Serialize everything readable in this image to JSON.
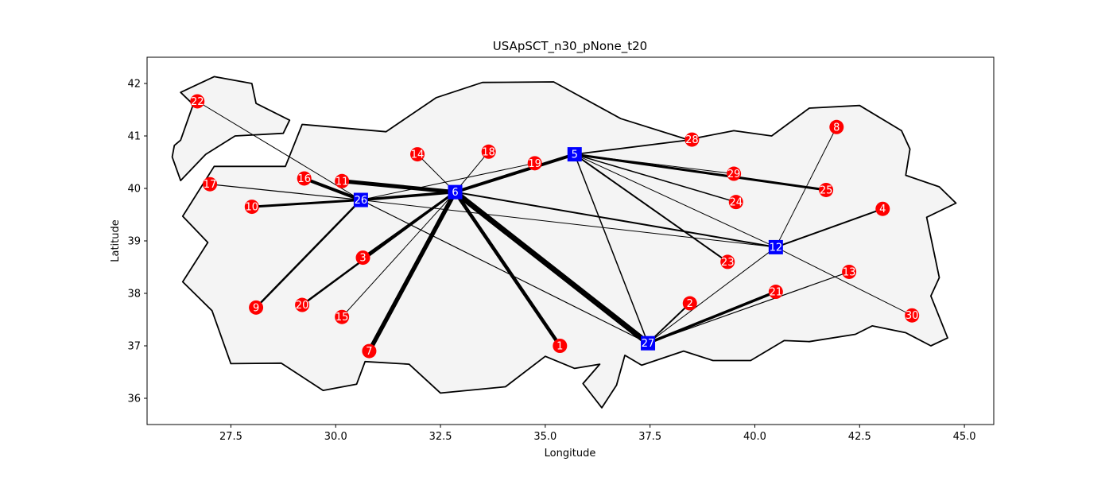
{
  "chart_data": {
    "type": "scatter",
    "title": "USApSCT_n30_pNone_t20",
    "xlabel": "Longitude",
    "ylabel": "Latitude",
    "xlim": [
      25.5,
      45.7
    ],
    "ylim": [
      35.5,
      42.5
    ],
    "xticks": [
      27.5,
      30.0,
      32.5,
      35.0,
      37.5,
      40.0,
      42.5,
      45.0
    ],
    "xtick_labels": [
      "27.5",
      "30.0",
      "32.5",
      "35.0",
      "37.5",
      "40.0",
      "42.5",
      "45.0"
    ],
    "yticks": [
      36,
      37,
      38,
      39,
      40,
      41,
      42
    ],
    "ytick_labels": [
      "36",
      "37",
      "38",
      "39",
      "40",
      "41",
      "42"
    ],
    "grid": false,
    "colors": {
      "hub": "#0000ff",
      "node": "#ff0000",
      "region_fill": "#f4f4f4",
      "edge": "#000000"
    },
    "outline": [
      [
        26.3,
        41.83
      ],
      [
        27.1,
        42.13
      ],
      [
        28.0,
        42.0
      ],
      [
        28.1,
        41.62
      ],
      [
        28.9,
        41.3
      ],
      [
        28.75,
        41.05
      ],
      [
        27.6,
        41.0
      ],
      [
        26.9,
        40.65
      ],
      [
        26.3,
        40.15
      ],
      [
        26.1,
        40.6
      ],
      [
        26.15,
        40.82
      ],
      [
        26.3,
        40.92
      ],
      [
        26.6,
        41.6
      ],
      [
        26.3,
        41.83
      ]
    ],
    "outline2": [
      [
        27.1,
        40.42
      ],
      [
        28.8,
        40.42
      ],
      [
        29.2,
        41.22
      ],
      [
        31.2,
        41.08
      ],
      [
        32.4,
        41.73
      ],
      [
        33.5,
        42.02
      ],
      [
        35.2,
        42.03
      ],
      [
        36.8,
        41.33
      ],
      [
        38.4,
        40.93
      ],
      [
        39.5,
        41.1
      ],
      [
        40.4,
        41.0
      ],
      [
        41.3,
        41.53
      ],
      [
        42.5,
        41.58
      ],
      [
        43.5,
        41.1
      ],
      [
        43.7,
        40.75
      ],
      [
        43.6,
        40.25
      ],
      [
        44.4,
        40.03
      ],
      [
        44.8,
        39.72
      ],
      [
        44.1,
        39.45
      ],
      [
        44.4,
        38.3
      ],
      [
        44.2,
        37.95
      ],
      [
        44.6,
        37.15
      ],
      [
        44.2,
        37.0
      ],
      [
        43.6,
        37.25
      ],
      [
        42.8,
        37.38
      ],
      [
        42.4,
        37.22
      ],
      [
        41.3,
        37.08
      ],
      [
        40.7,
        37.1
      ],
      [
        39.9,
        36.72
      ],
      [
        39.0,
        36.72
      ],
      [
        38.3,
        36.9
      ],
      [
        37.3,
        36.63
      ],
      [
        36.9,
        36.82
      ],
      [
        36.7,
        36.25
      ],
      [
        36.35,
        35.82
      ],
      [
        35.9,
        36.28
      ],
      [
        36.3,
        36.65
      ],
      [
        35.7,
        36.57
      ],
      [
        35.0,
        36.8
      ],
      [
        34.05,
        36.22
      ],
      [
        32.5,
        36.1
      ],
      [
        31.75,
        36.65
      ],
      [
        30.7,
        36.7
      ],
      [
        30.5,
        36.27
      ],
      [
        29.7,
        36.15
      ],
      [
        28.7,
        36.67
      ],
      [
        27.5,
        36.66
      ],
      [
        27.05,
        37.67
      ],
      [
        26.35,
        38.22
      ],
      [
        26.95,
        38.97
      ],
      [
        26.35,
        39.47
      ],
      [
        27.1,
        40.42
      ]
    ],
    "hubs": [
      {
        "id": "5",
        "x": 35.7,
        "y": 40.65
      },
      {
        "id": "6",
        "x": 32.85,
        "y": 39.93
      },
      {
        "id": "12",
        "x": 40.5,
        "y": 38.88
      },
      {
        "id": "26",
        "x": 30.6,
        "y": 39.78
      },
      {
        "id": "27",
        "x": 37.45,
        "y": 37.05
      }
    ],
    "nodes": [
      {
        "id": "1",
        "x": 35.35,
        "y": 37.0
      },
      {
        "id": "2",
        "x": 38.45,
        "y": 37.81
      },
      {
        "id": "3",
        "x": 30.65,
        "y": 38.68
      },
      {
        "id": "4",
        "x": 43.05,
        "y": 39.61
      },
      {
        "id": "7",
        "x": 30.8,
        "y": 36.9
      },
      {
        "id": "8",
        "x": 41.95,
        "y": 41.17
      },
      {
        "id": "9",
        "x": 28.1,
        "y": 37.73
      },
      {
        "id": "10",
        "x": 28.0,
        "y": 39.65
      },
      {
        "id": "11",
        "x": 30.15,
        "y": 40.14
      },
      {
        "id": "13",
        "x": 42.25,
        "y": 38.41
      },
      {
        "id": "14",
        "x": 31.95,
        "y": 40.65
      },
      {
        "id": "15",
        "x": 30.15,
        "y": 37.55
      },
      {
        "id": "16",
        "x": 29.25,
        "y": 40.19
      },
      {
        "id": "17",
        "x": 27.0,
        "y": 40.08
      },
      {
        "id": "18",
        "x": 33.65,
        "y": 40.7
      },
      {
        "id": "19",
        "x": 34.75,
        "y": 40.48
      },
      {
        "id": "20",
        "x": 29.2,
        "y": 37.78
      },
      {
        "id": "21",
        "x": 40.5,
        "y": 38.03
      },
      {
        "id": "22",
        "x": 26.7,
        "y": 41.66
      },
      {
        "id": "23",
        "x": 39.35,
        "y": 38.6
      },
      {
        "id": "24",
        "x": 39.55,
        "y": 39.74
      },
      {
        "id": "25",
        "x": 41.7,
        "y": 39.97
      },
      {
        "id": "28",
        "x": 38.5,
        "y": 40.93
      },
      {
        "id": "29",
        "x": 39.5,
        "y": 40.28
      },
      {
        "id": "30",
        "x": 43.75,
        "y": 37.58
      }
    ],
    "edges": [
      {
        "from": "6",
        "to": "27",
        "width": 7
      },
      {
        "from": "6",
        "to": "7",
        "width": 5.5
      },
      {
        "from": "6",
        "to": "1",
        "width": 4.5
      },
      {
        "from": "6",
        "to": "11",
        "width": 5
      },
      {
        "from": "26",
        "to": "16",
        "width": 4
      },
      {
        "from": "6",
        "to": "5",
        "width": 4
      },
      {
        "from": "6",
        "to": "26",
        "width": 3.5
      },
      {
        "from": "26",
        "to": "10",
        "width": 3
      },
      {
        "from": "26",
        "to": "9",
        "width": 2.5
      },
      {
        "from": "6",
        "to": "3",
        "width": 3
      },
      {
        "from": "6",
        "to": "20",
        "width": 2.5
      },
      {
        "from": "6",
        "to": "15",
        "width": 1
      },
      {
        "from": "6",
        "to": "14",
        "width": 1
      },
      {
        "from": "6",
        "to": "18",
        "width": 1
      },
      {
        "from": "6",
        "to": "12",
        "width": 2
      },
      {
        "from": "26",
        "to": "17",
        "width": 1.2
      },
      {
        "from": "26",
        "to": "22",
        "width": 1
      },
      {
        "from": "26",
        "to": "27",
        "width": 1.2
      },
      {
        "from": "26",
        "to": "19",
        "width": 1
      },
      {
        "from": "26",
        "to": "12",
        "width": 1
      },
      {
        "from": "5",
        "to": "28",
        "width": 1.8
      },
      {
        "from": "5",
        "to": "29",
        "width": 1
      },
      {
        "from": "5",
        "to": "25",
        "width": 3
      },
      {
        "from": "5",
        "to": "24",
        "width": 1.5
      },
      {
        "from": "5",
        "to": "23",
        "width": 2
      },
      {
        "from": "5",
        "to": "12",
        "width": 1
      },
      {
        "from": "5",
        "to": "27",
        "width": 1.5
      },
      {
        "from": "12",
        "to": "8",
        "width": 1
      },
      {
        "from": "12",
        "to": "4",
        "width": 2
      },
      {
        "from": "12",
        "to": "27",
        "width": 1
      },
      {
        "from": "12",
        "to": "30",
        "width": 1
      },
      {
        "from": "27",
        "to": "2",
        "width": 2
      },
      {
        "from": "27",
        "to": "21",
        "width": 3.5
      },
      {
        "from": "27",
        "to": "13",
        "width": 1.2
      }
    ]
  }
}
